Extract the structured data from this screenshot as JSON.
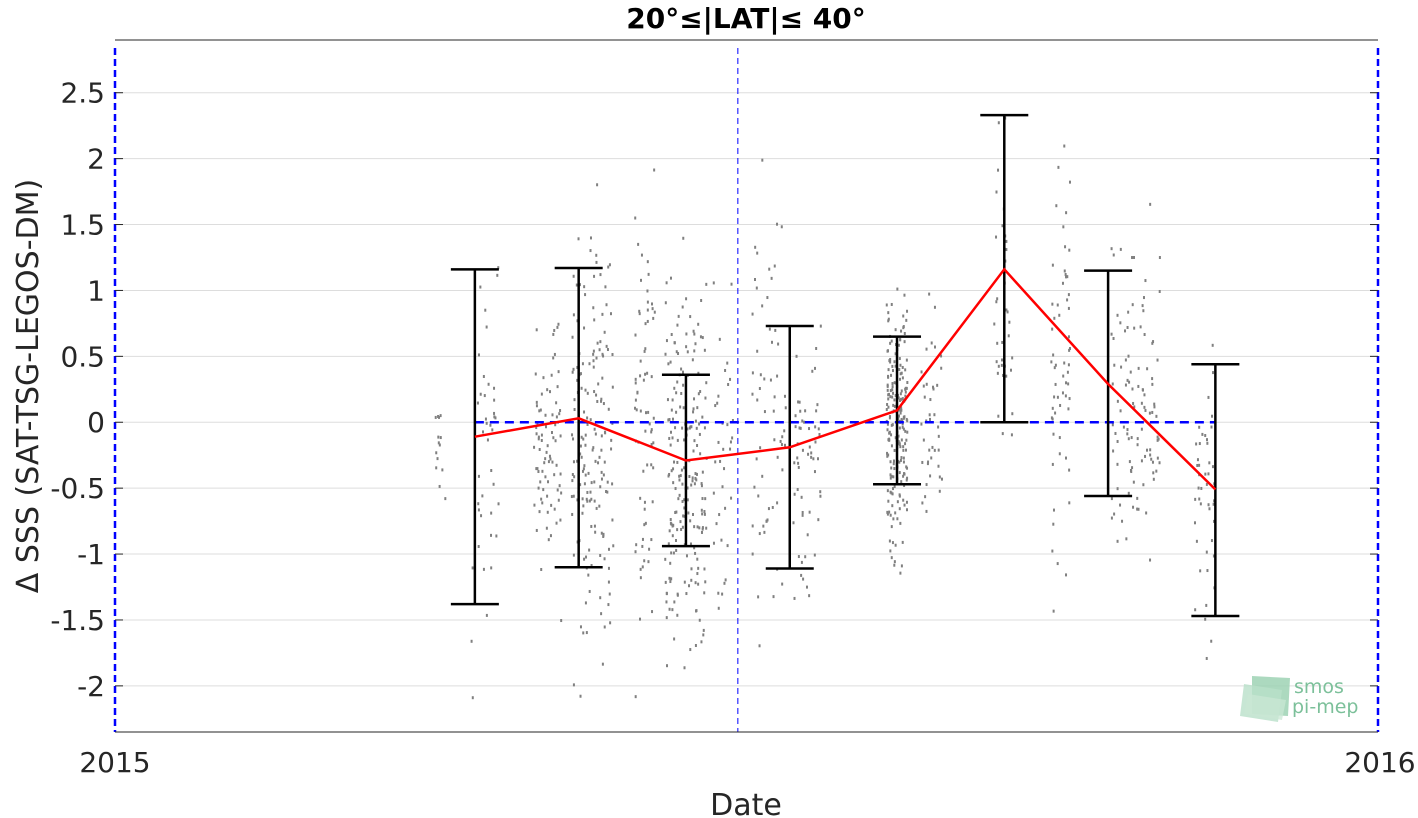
{
  "chart_data": {
    "type": "line",
    "title": "20°≤|LAT|≤ 40°",
    "xlabel": "Date",
    "ylabel": "Δ SSS (SAT-TSG-LEGOS-DM)",
    "x_tick_labels": [
      "2015",
      "2016"
    ],
    "x_range": [
      "2015-01-01",
      "2016-01-01"
    ],
    "ylim": [
      -2.35,
      2.9
    ],
    "y_ticks": [
      -2,
      -1.5,
      -1,
      -0.5,
      0,
      0.5,
      1,
      1.5,
      2,
      2.5
    ],
    "grid": "horizontal",
    "reference_lines": [
      {
        "type": "horizontal",
        "y": 0,
        "x_from": "2015-04-15",
        "x_to": "2015-11-15",
        "style": "dashed",
        "color": "#0000ff"
      },
      {
        "type": "vertical",
        "x": "2015-01-01",
        "style": "dashed",
        "color": "#0000ff"
      },
      {
        "type": "vertical",
        "x": "2015-06-30",
        "style": "dashed",
        "color": "#0000ff"
      },
      {
        "type": "vertical",
        "x": "2016-01-01",
        "style": "dashed",
        "color": "#0000ff"
      }
    ],
    "series": [
      {
        "color": "#ff0000",
        "x": [
          "2015-04-15",
          "2015-05-15",
          "2015-06-15",
          "2015-07-15",
          "2015-08-15",
          "2015-09-15",
          "2015-10-15",
          "2015-11-15"
        ],
        "y": [
          -0.11,
          0.03,
          -0.29,
          -0.19,
          0.09,
          1.16,
          0.29,
          -0.51
        ]
      }
    ],
    "error_bars": [
      {
        "x": "2015-04-15",
        "low": -1.38,
        "high": 1.16
      },
      {
        "x": "2015-05-15",
        "low": -1.1,
        "high": 1.17
      },
      {
        "x": "2015-06-15",
        "low": -0.94,
        "high": 0.36
      },
      {
        "x": "2015-07-15",
        "low": -1.11,
        "high": 0.73
      },
      {
        "x": "2015-08-15",
        "low": -0.47,
        "high": 0.65
      },
      {
        "x": "2015-09-15",
        "low": 0.0,
        "high": 2.33
      },
      {
        "x": "2015-10-15",
        "low": -0.56,
        "high": 1.15
      },
      {
        "x": "2015-11-15",
        "low": -1.47,
        "high": 0.44
      }
    ],
    "scatter_clusters": [
      {
        "x": "2015-04-05",
        "spread_days": 1.5,
        "center": -0.15,
        "sd": 0.22,
        "count": 14
      },
      {
        "x": "2015-04-18",
        "spread_days": 4,
        "center": -0.3,
        "sd": 0.75,
        "count": 40
      },
      {
        "x": "2015-05-06",
        "spread_days": 4,
        "center": -0.3,
        "sd": 0.45,
        "count": 80
      },
      {
        "x": "2015-05-19",
        "spread_days": 6,
        "center": -0.2,
        "sd": 0.75,
        "count": 170
      },
      {
        "x": "2015-06-03",
        "spread_days": 3,
        "center": -0.1,
        "sd": 0.9,
        "count": 70
      },
      {
        "x": "2015-06-15",
        "spread_days": 6,
        "center": -0.35,
        "sd": 0.65,
        "count": 200
      },
      {
        "x": "2015-06-26",
        "spread_days": 3,
        "center": -0.3,
        "sd": 0.6,
        "count": 35
      },
      {
        "x": "2015-07-09",
        "spread_days": 5,
        "center": 0.0,
        "sd": 0.8,
        "count": 60
      },
      {
        "x": "2015-07-20",
        "spread_days": 4,
        "center": -0.4,
        "sd": 0.6,
        "count": 55
      },
      {
        "x": "2015-08-15",
        "spread_days": 3,
        "center": 0.0,
        "sd": 0.45,
        "count": 220
      },
      {
        "x": "2015-08-25",
        "spread_days": 3,
        "center": -0.1,
        "sd": 0.4,
        "count": 40
      },
      {
        "x": "2015-09-15",
        "spread_days": 3,
        "center": 0.9,
        "sd": 0.55,
        "count": 40
      },
      {
        "x": "2015-10-01",
        "spread_days": 3,
        "center": 0.2,
        "sd": 0.9,
        "count": 60
      },
      {
        "x": "2015-10-20",
        "spread_days": 4,
        "center": 0.1,
        "sd": 0.55,
        "count": 60
      },
      {
        "x": "2015-10-27",
        "spread_days": 3,
        "center": 0.3,
        "sd": 0.55,
        "count": 45
      },
      {
        "x": "2015-11-12",
        "spread_days": 3,
        "center": -0.6,
        "sd": 0.5,
        "count": 45
      }
    ],
    "colors": {
      "mean_line": "#ff0000",
      "error_bar": "#000000",
      "scatter": "#808080",
      "reference": "#0000ff",
      "grid": "#dddddd",
      "logo": "#7cc09a"
    }
  },
  "logo": {
    "line1": "smos",
    "line2": "pi-mep"
  }
}
